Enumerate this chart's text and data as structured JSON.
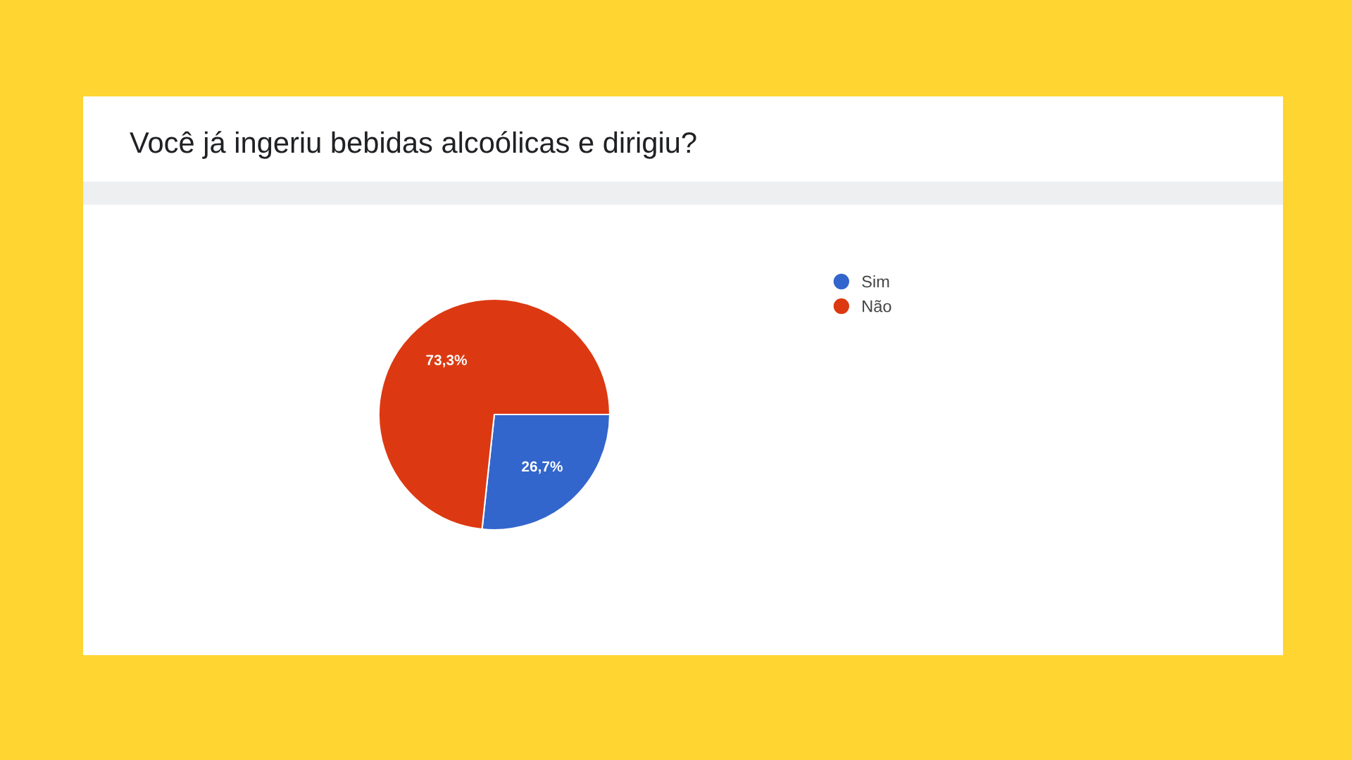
{
  "chart_data": {
    "type": "pie",
    "title": "Você já ingeriu bebidas alcoólicas e dirigiu?",
    "categories": [
      "Sim",
      "Não"
    ],
    "values": [
      26.7,
      73.3
    ],
    "colors": [
      "#3366cc",
      "#dc3912"
    ],
    "value_labels": [
      "26,7%",
      "73,3%"
    ],
    "legend": "top right"
  }
}
